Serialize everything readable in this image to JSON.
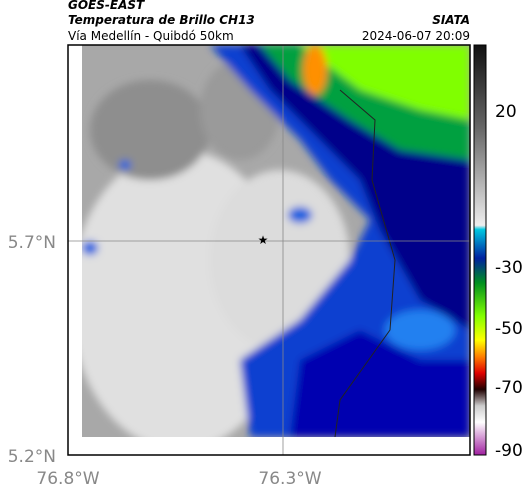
{
  "header": {
    "title": "GOES-EAST",
    "product": "Temperatura de Brillo CH13",
    "source": "SIATA",
    "route": "Vía Medellín - Quibdó 50km",
    "datetime": "2024-06-07 20:09"
  },
  "axes": {
    "y_labels": [
      "5.7°N",
      "5.2°N"
    ],
    "x_labels": [
      "76.8°W",
      "76.3°W"
    ]
  },
  "colorbar": {
    "ticks": [
      20,
      -30,
      -50,
      -70,
      -90
    ]
  }
}
